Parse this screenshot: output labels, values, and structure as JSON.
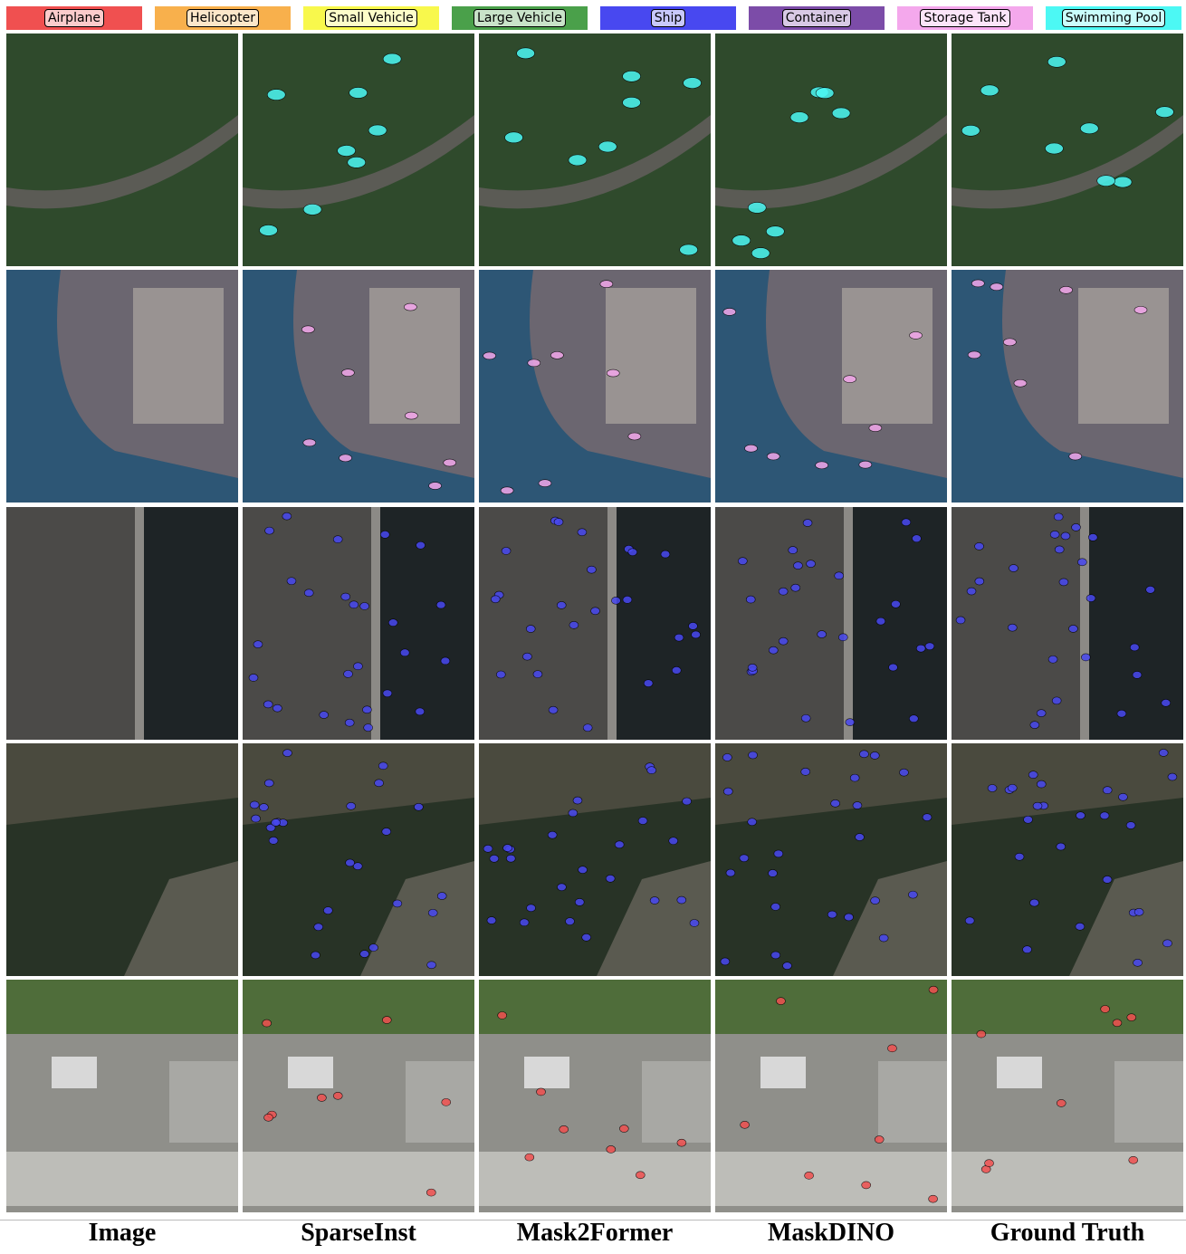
{
  "legend": [
    {
      "label": "Airplane",
      "color": "#f05050"
    },
    {
      "label": "Helicopter",
      "color": "#f8b04c"
    },
    {
      "label": "Small Vehicle",
      "color": "#f8f84c"
    },
    {
      "label": "Large Vehicle",
      "color": "#4aa04a"
    },
    {
      "label": "Ship",
      "color": "#4848f0"
    },
    {
      "label": "Container",
      "color": "#7c4ca8"
    },
    {
      "label": "Storage Tank",
      "color": "#f4a8ec"
    },
    {
      "label": "Swimming Pool",
      "color": "#4cf8f4"
    }
  ],
  "columns": [
    "Image",
    "SparseInst",
    "Mask2Former",
    "MaskDINO",
    "Ground Truth"
  ]
}
